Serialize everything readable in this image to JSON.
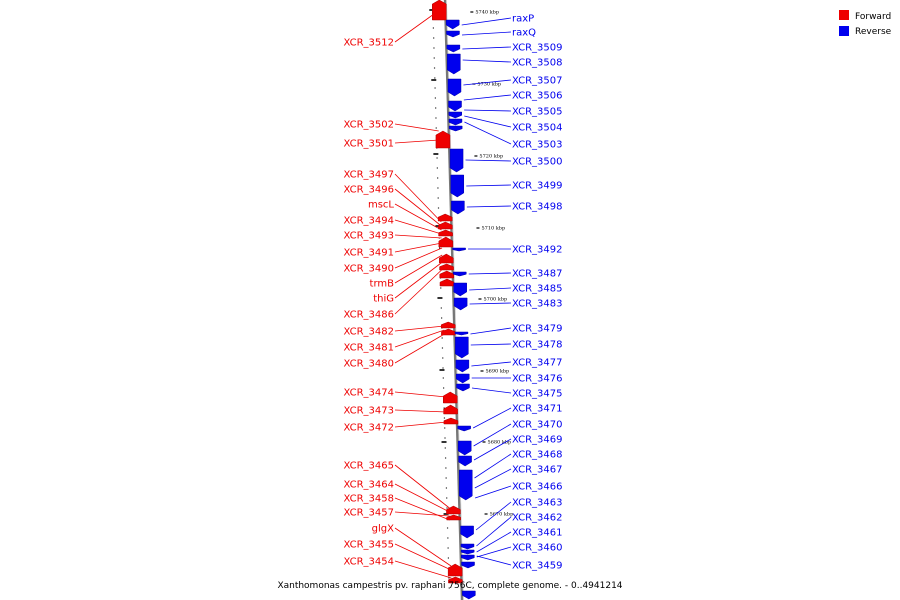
{
  "caption": "Xanthomonas campestris pv. raphani 756C, complete genome. - 0..4941214",
  "colors": {
    "forward": "#ee0000",
    "reverse": "#0000ee",
    "backbone": "#808080"
  },
  "legend": [
    {
      "label": "Forward",
      "color": "#ee0000"
    },
    {
      "label": "Reverse",
      "color": "#0000ee"
    }
  ],
  "ticks": [
    "5740 kbp",
    "5730 kbp",
    "5720 kbp",
    "5710 kbp",
    "5700 kbp",
    "5690 kbp",
    "5680 kbp",
    "5670 kbp"
  ],
  "forward_labels": [
    "XCR_3512",
    "XCR_3502",
    "XCR_3501",
    "XCR_3497",
    "XCR_3496",
    "mscL",
    "XCR_3494",
    "XCR_3493",
    "XCR_3491",
    "XCR_3490",
    "trmB",
    "thiG",
    "XCR_3486",
    "XCR_3482",
    "XCR_3481",
    "XCR_3480",
    "XCR_3474",
    "XCR_3473",
    "XCR_3472",
    "XCR_3465",
    "XCR_3464",
    "XCR_3458",
    "XCR_3457",
    "glgX",
    "XCR_3455",
    "XCR_3454"
  ],
  "reverse_labels": [
    "raxP",
    "raxQ",
    "XCR_3509",
    "XCR_3508",
    "XCR_3507",
    "XCR_3506",
    "XCR_3505",
    "XCR_3504",
    "XCR_3503",
    "XCR_3500",
    "XCR_3499",
    "XCR_3498",
    "XCR_3492",
    "XCR_3487",
    "XCR_3485",
    "XCR_3483",
    "XCR_3479",
    "XCR_3478",
    "XCR_3477",
    "XCR_3476",
    "XCR_3475",
    "XCR_3471",
    "XCR_3470",
    "XCR_3469",
    "XCR_3468",
    "XCR_3467",
    "XCR_3466",
    "XCR_3463",
    "XCR_3462",
    "XCR_3461",
    "XCR_3460",
    "XCR_3459"
  ]
}
